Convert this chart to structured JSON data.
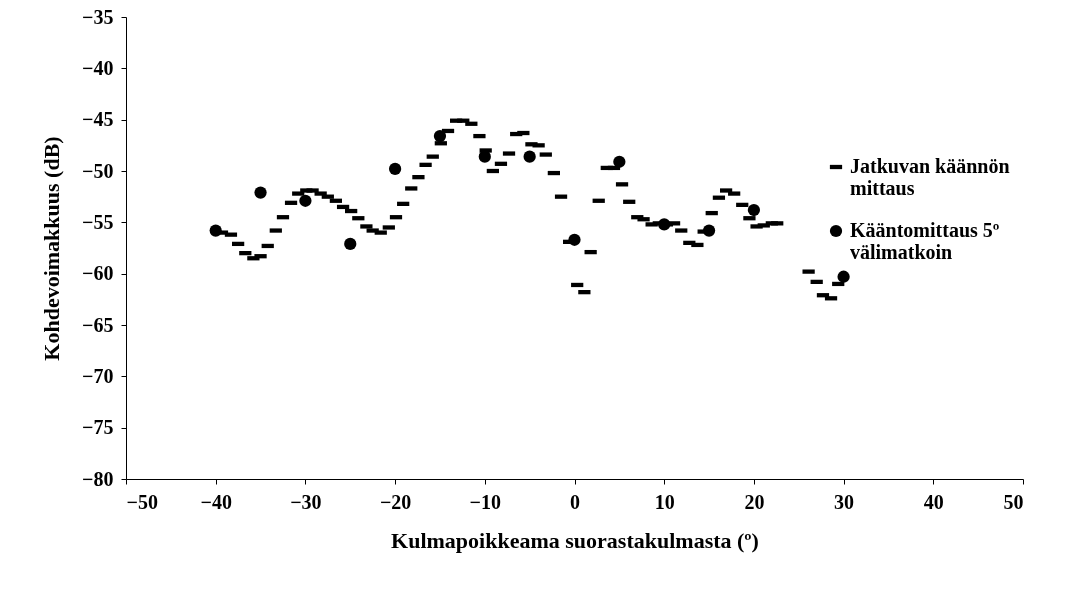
{
  "chart_data": {
    "type": "scatter",
    "xlabel": "Kulmapoikkeama suorastakulmasta (º)",
    "ylabel": "Kohdevoimakkuus (dB)",
    "xlim": [
      -50,
      50
    ],
    "xticks": [
      -50,
      -40,
      -30,
      -20,
      -10,
      0,
      10,
      20,
      30,
      40,
      50
    ],
    "ylim": [
      -80,
      -35
    ],
    "yticks": [
      -80,
      -75,
      -70,
      -65,
      -60,
      -55,
      -50,
      -45,
      -40,
      -35
    ],
    "grid": false,
    "legend": "right",
    "series": [
      {
        "name": "Jatkuvan käännön mittaus",
        "color": "#000000",
        "marker": "square",
        "x": [
          -39.3,
          -38.3,
          -37.5,
          -36.7,
          -35.8,
          -35.0,
          -34.2,
          -33.3,
          -32.5,
          -31.6,
          -30.8,
          -29.9,
          -29.2,
          -28.3,
          -27.5,
          -26.6,
          -25.8,
          -24.9,
          -24.1,
          -23.2,
          -22.5,
          -21.6,
          -20.7,
          -19.9,
          -19.1,
          -18.2,
          -17.4,
          -16.6,
          -15.8,
          -14.9,
          -14.1,
          -13.2,
          -12.4,
          -11.5,
          -10.6,
          -9.9,
          -9.1,
          -8.2,
          -7.3,
          -6.5,
          -5.7,
          -4.8,
          -4.0,
          -3.2,
          -2.3,
          -1.5,
          -0.6,
          0.3,
          1.1,
          1.8,
          2.7,
          3.6,
          4.4,
          5.3,
          6.1,
          7.0,
          7.7,
          8.6,
          9.4,
          10.3,
          11.1,
          11.9,
          12.8,
          13.7,
          14.4,
          15.3,
          16.1,
          16.9,
          17.8,
          18.7,
          19.5,
          20.3,
          21.1,
          22.0,
          22.6,
          26.1,
          27.0,
          27.7,
          28.6,
          29.4
        ],
        "values": [
          -56.0,
          -56.2,
          -57.1,
          -58.0,
          -58.5,
          -58.3,
          -57.3,
          -55.8,
          -54.5,
          -53.1,
          -52.2,
          -51.9,
          -51.9,
          -52.2,
          -52.5,
          -52.9,
          -53.5,
          -53.9,
          -54.6,
          -55.4,
          -55.8,
          -56.0,
          -55.5,
          -54.5,
          -53.2,
          -51.7,
          -50.6,
          -49.4,
          -48.6,
          -47.3,
          -46.1,
          -45.1,
          -45.1,
          -45.4,
          -46.6,
          -48.0,
          -50.0,
          -49.3,
          -48.3,
          -46.4,
          -46.3,
          -47.4,
          -47.5,
          -48.4,
          -50.2,
          -52.5,
          -56.9,
          -61.1,
          -61.8,
          -57.9,
          -52.9,
          -49.7,
          -49.7,
          -51.3,
          -53.0,
          -54.5,
          -54.7,
          -55.2,
          -55.1,
          -55.2,
          -55.1,
          -55.8,
          -57.0,
          -57.2,
          -55.9,
          -54.1,
          -52.6,
          -51.9,
          -52.2,
          -53.3,
          -54.6,
          -55.4,
          -55.3,
          -55.1,
          -55.1,
          -59.8,
          -60.8,
          -62.1,
          -62.4,
          -61.0
        ]
      },
      {
        "name": "Kääntomittaus 5º välimatkoin",
        "color": "#000000",
        "marker": "circle",
        "x": [
          -40,
          -35,
          -30,
          -25,
          -20,
          -15,
          -10,
          -5,
          0,
          5,
          10,
          15,
          20,
          30
        ],
        "values": [
          -55.8,
          -52.1,
          -52.9,
          -57.1,
          -49.8,
          -46.6,
          -48.6,
          -48.6,
          -56.7,
          -49.1,
          -55.2,
          -55.8,
          -53.8,
          -60.3
        ]
      }
    ]
  }
}
